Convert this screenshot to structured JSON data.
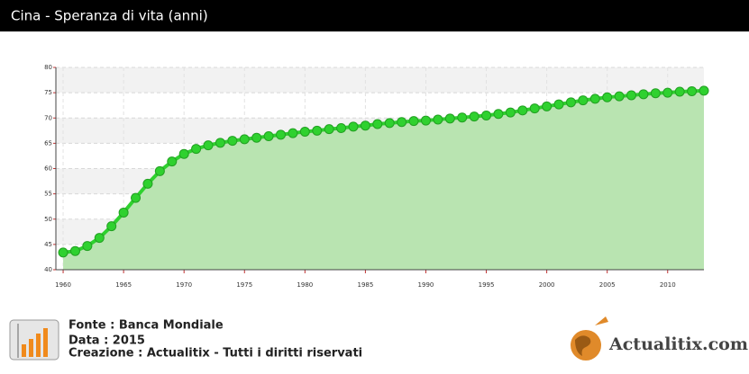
{
  "chart_data": {
    "type": "area-line",
    "title": "Cina - Speranza di vita (anni)",
    "x": [
      1960,
      1961,
      1962,
      1963,
      1964,
      1965,
      1966,
      1967,
      1968,
      1969,
      1970,
      1971,
      1972,
      1973,
      1974,
      1975,
      1976,
      1977,
      1978,
      1979,
      1980,
      1981,
      1982,
      1983,
      1984,
      1985,
      1986,
      1987,
      1988,
      1989,
      1990,
      1991,
      1992,
      1993,
      1994,
      1995,
      1996,
      1997,
      1998,
      1999,
      2000,
      2001,
      2002,
      2003,
      2004,
      2005,
      2006,
      2007,
      2008,
      2009,
      2010,
      2011,
      2012,
      2013
    ],
    "values": [
      43.4,
      43.7,
      44.7,
      46.3,
      48.6,
      51.3,
      54.2,
      57.0,
      59.5,
      61.4,
      62.9,
      63.9,
      64.6,
      65.1,
      65.5,
      65.8,
      66.1,
      66.4,
      66.7,
      67.0,
      67.3,
      67.5,
      67.8,
      68.0,
      68.3,
      68.5,
      68.8,
      69.0,
      69.2,
      69.4,
      69.5,
      69.7,
      69.9,
      70.1,
      70.3,
      70.5,
      70.8,
      71.1,
      71.5,
      71.9,
      72.3,
      72.7,
      73.1,
      73.5,
      73.8,
      74.1,
      74.3,
      74.5,
      74.7,
      74.9,
      75.0,
      75.2,
      75.3,
      75.4
    ],
    "color": "#2fd12f",
    "fill": "#b9e4b1",
    "xlim": [
      1959.4,
      2013
    ],
    "xticks": [
      1960,
      1965,
      1970,
      1975,
      1980,
      1985,
      1990,
      1995,
      2000,
      2005,
      2010
    ],
    "ylim": [
      40,
      80
    ],
    "yticks": [
      40,
      45,
      50,
      55,
      60,
      65,
      70,
      75,
      80
    ],
    "grid": true
  },
  "footer": {
    "source": "Fonte : Banca Mondiale",
    "date": "Data : 2015",
    "credit": "Creazione : Actualitix - Tutti i diritti riservati",
    "logo": "Actualitix.com"
  }
}
